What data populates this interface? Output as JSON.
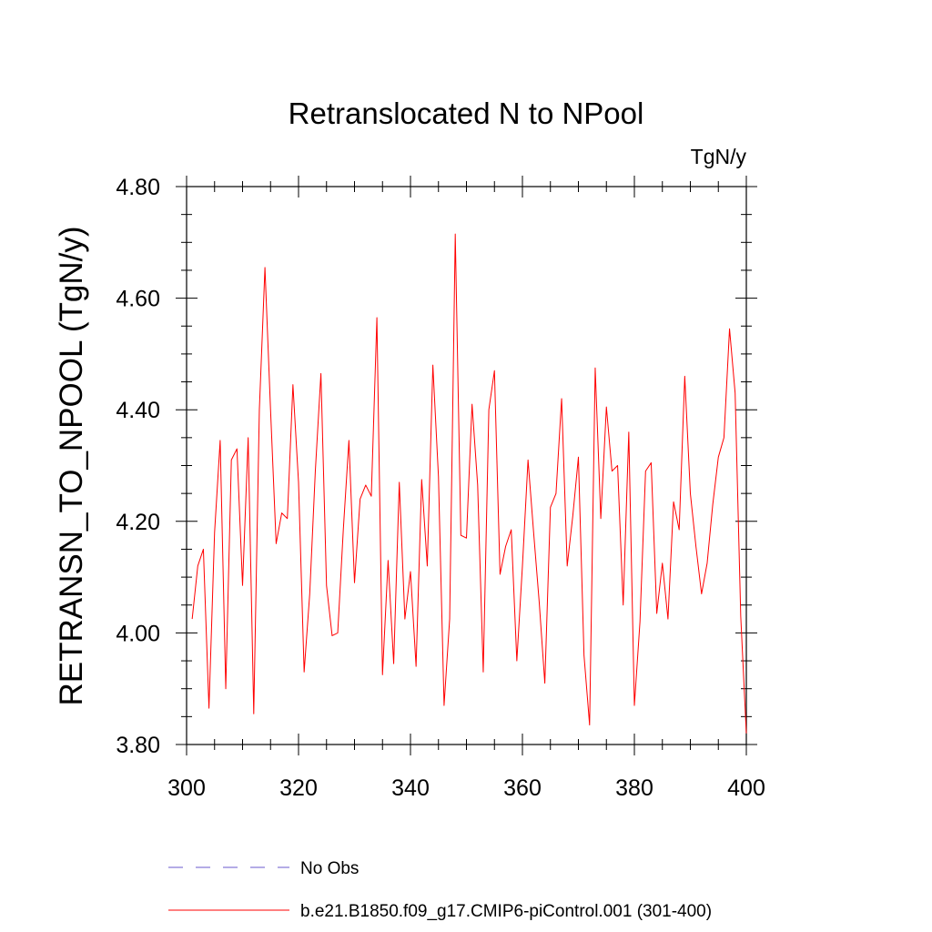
{
  "chart_data": {
    "type": "line",
    "title": "Retranslocated N to NPool",
    "units": "TgN/y",
    "xlabel": "",
    "ylabel": "RETRANSN_TO_NPOOL  (TgN/y)",
    "xlim": [
      300,
      400
    ],
    "ylim": [
      3.8,
      4.8
    ],
    "x_ticks": [
      300,
      320,
      340,
      360,
      380,
      400
    ],
    "x_tick_labels": [
      "300",
      "320",
      "340",
      "360",
      "380",
      "400"
    ],
    "y_ticks": [
      3.8,
      4.0,
      4.2,
      4.4,
      4.6,
      4.8
    ],
    "y_tick_labels": [
      "3.80",
      "4.00",
      "4.20",
      "4.40",
      "4.60",
      "4.80"
    ],
    "legend": [
      {
        "label": "No Obs",
        "style": "dashed",
        "color": "#6a5acd"
      },
      {
        "label": "b.e21.B1850.f09_g17.CMIP6-piControl.001 (301-400)",
        "style": "solid",
        "color": "#ff0000"
      }
    ],
    "series": [
      {
        "name": "b.e21.B1850.f09_g17.CMIP6-piControl.001 (301-400)",
        "color": "#ff0000",
        "x": [
          301,
          302,
          303,
          304,
          305,
          306,
          307,
          308,
          309,
          310,
          311,
          312,
          313,
          314,
          315,
          316,
          317,
          318,
          319,
          320,
          321,
          322,
          323,
          324,
          325,
          326,
          327,
          328,
          329,
          330,
          331,
          332,
          333,
          334,
          335,
          336,
          337,
          338,
          339,
          340,
          341,
          342,
          343,
          344,
          345,
          346,
          347,
          348,
          349,
          350,
          351,
          352,
          353,
          354,
          355,
          356,
          357,
          358,
          359,
          360,
          361,
          362,
          363,
          364,
          365,
          366,
          367,
          368,
          369,
          370,
          371,
          372,
          373,
          374,
          375,
          376,
          377,
          378,
          379,
          380,
          381,
          382,
          383,
          384,
          385,
          386,
          387,
          388,
          389,
          390,
          391,
          392,
          393,
          394,
          395,
          396,
          397,
          398,
          399,
          400
        ],
        "values": [
          4.025,
          4.12,
          4.15,
          3.865,
          4.18,
          4.345,
          3.9,
          4.31,
          4.33,
          4.085,
          4.35,
          3.855,
          4.4,
          4.655,
          4.4,
          4.16,
          4.215,
          4.205,
          4.445,
          4.27,
          3.93,
          4.07,
          4.29,
          4.465,
          4.085,
          3.995,
          4.0,
          4.185,
          4.345,
          4.09,
          4.24,
          4.265,
          4.245,
          4.565,
          3.925,
          4.13,
          3.945,
          4.27,
          4.025,
          4.11,
          3.94,
          4.275,
          4.12,
          4.48,
          4.28,
          3.87,
          4.025,
          4.715,
          4.175,
          4.17,
          4.41,
          4.265,
          3.93,
          4.4,
          4.47,
          4.105,
          4.155,
          4.185,
          3.95,
          4.12,
          4.31,
          4.18,
          4.055,
          3.91,
          4.225,
          4.25,
          4.42,
          4.12,
          4.21,
          4.315,
          3.96,
          3.835,
          4.475,
          4.205,
          4.405,
          4.29,
          4.3,
          4.05,
          4.36,
          3.87,
          4.02,
          4.29,
          4.305,
          4.035,
          4.125,
          4.025,
          4.235,
          4.185,
          4.46,
          4.25,
          4.155,
          4.07,
          4.125,
          4.23,
          4.315,
          4.35,
          4.545,
          4.43,
          4.03,
          3.82
        ]
      }
    ]
  }
}
